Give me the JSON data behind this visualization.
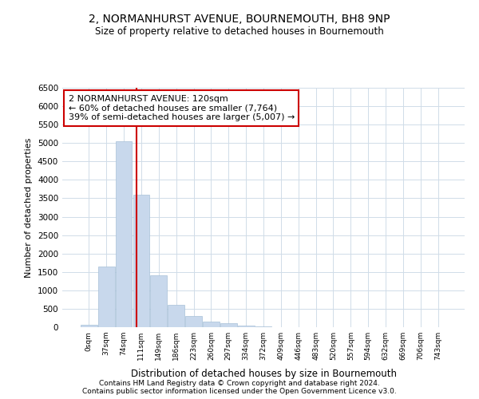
{
  "title1": "2, NORMANHURST AVENUE, BOURNEMOUTH, BH8 9NP",
  "title2": "Size of property relative to detached houses in Bournemouth",
  "xlabel": "Distribution of detached houses by size in Bournemouth",
  "ylabel": "Number of detached properties",
  "bar_color": "#c8d8ec",
  "bar_edge_color": "#a8c0d8",
  "bin_labels": [
    "0sqm",
    "37sqm",
    "74sqm",
    "111sqm",
    "149sqm",
    "186sqm",
    "223sqm",
    "260sqm",
    "297sqm",
    "334sqm",
    "372sqm",
    "409sqm",
    "446sqm",
    "483sqm",
    "520sqm",
    "557sqm",
    "594sqm",
    "632sqm",
    "669sqm",
    "706sqm",
    "743sqm"
  ],
  "bar_heights": [
    75,
    1650,
    5050,
    3600,
    1400,
    600,
    300,
    150,
    100,
    50,
    30,
    10,
    5,
    2,
    1,
    1,
    1,
    0,
    0,
    0,
    0
  ],
  "vline_x": 2.75,
  "vline_color": "#cc0000",
  "annotation_text": "2 NORMANHURST AVENUE: 120sqm\n← 60% of detached houses are smaller (7,764)\n39% of semi-detached houses are larger (5,007) →",
  "annotation_box_color": "#ffffff",
  "annotation_box_edge": "#cc0000",
  "ylim": [
    0,
    6500
  ],
  "yticks": [
    0,
    500,
    1000,
    1500,
    2000,
    2500,
    3000,
    3500,
    4000,
    4500,
    5000,
    5500,
    6000,
    6500
  ],
  "footer1": "Contains HM Land Registry data © Crown copyright and database right 2024.",
  "footer2": "Contains public sector information licensed under the Open Government Licence v3.0.",
  "background_color": "#ffffff",
  "grid_color": "#d0dce8"
}
